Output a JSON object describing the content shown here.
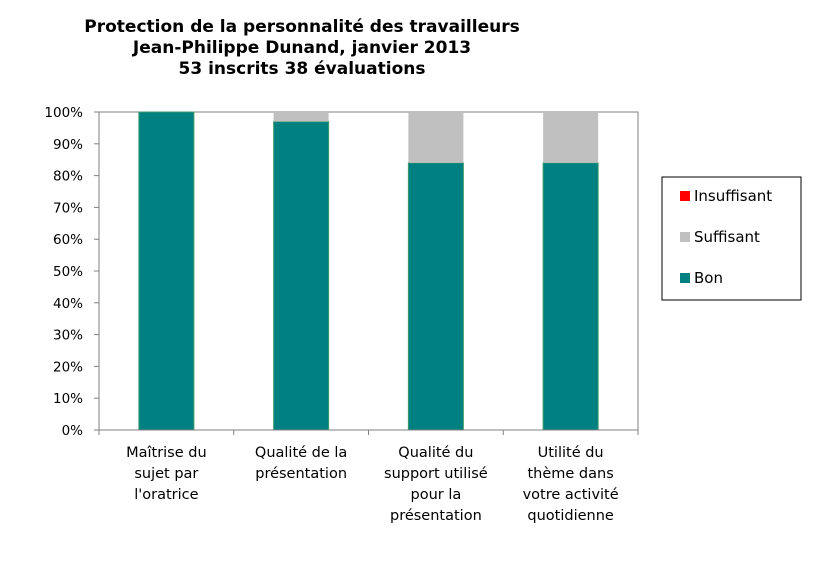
{
  "chart_data": {
    "type": "bar",
    "stacked": true,
    "title": [
      "Protection de la personnalité des travailleurs",
      "Jean-Philippe Dunand, janvier 2013",
      "53 inscrits 38 évaluations"
    ],
    "categories": [
      [
        "Maîtrise du",
        "sujet par",
        "l'oratrice"
      ],
      [
        "Qualité de la",
        "présentation"
      ],
      [
        "Qualité du",
        "support utilisé",
        "pour la",
        "présentation"
      ],
      [
        "Utilité du",
        "thème dans",
        "votre activité",
        "quotidienne"
      ]
    ],
    "series": [
      {
        "name": "Bon",
        "color": "#008080",
        "values": [
          100,
          97,
          84,
          84
        ]
      },
      {
        "name": "Suffisant",
        "color": "#c0c0c0",
        "values": [
          0,
          3,
          16,
          16
        ]
      },
      {
        "name": "Insuffisant",
        "color": "#ff0000",
        "values": [
          0,
          0,
          0,
          0
        ]
      }
    ],
    "legend_order": [
      "Insuffisant",
      "Suffisant",
      "Bon"
    ],
    "yticks": [
      "0%",
      "10%",
      "20%",
      "30%",
      "40%",
      "50%",
      "60%",
      "70%",
      "80%",
      "90%",
      "100%"
    ],
    "ylim": [
      0,
      100
    ],
    "grid": false,
    "legend_position": "right"
  }
}
